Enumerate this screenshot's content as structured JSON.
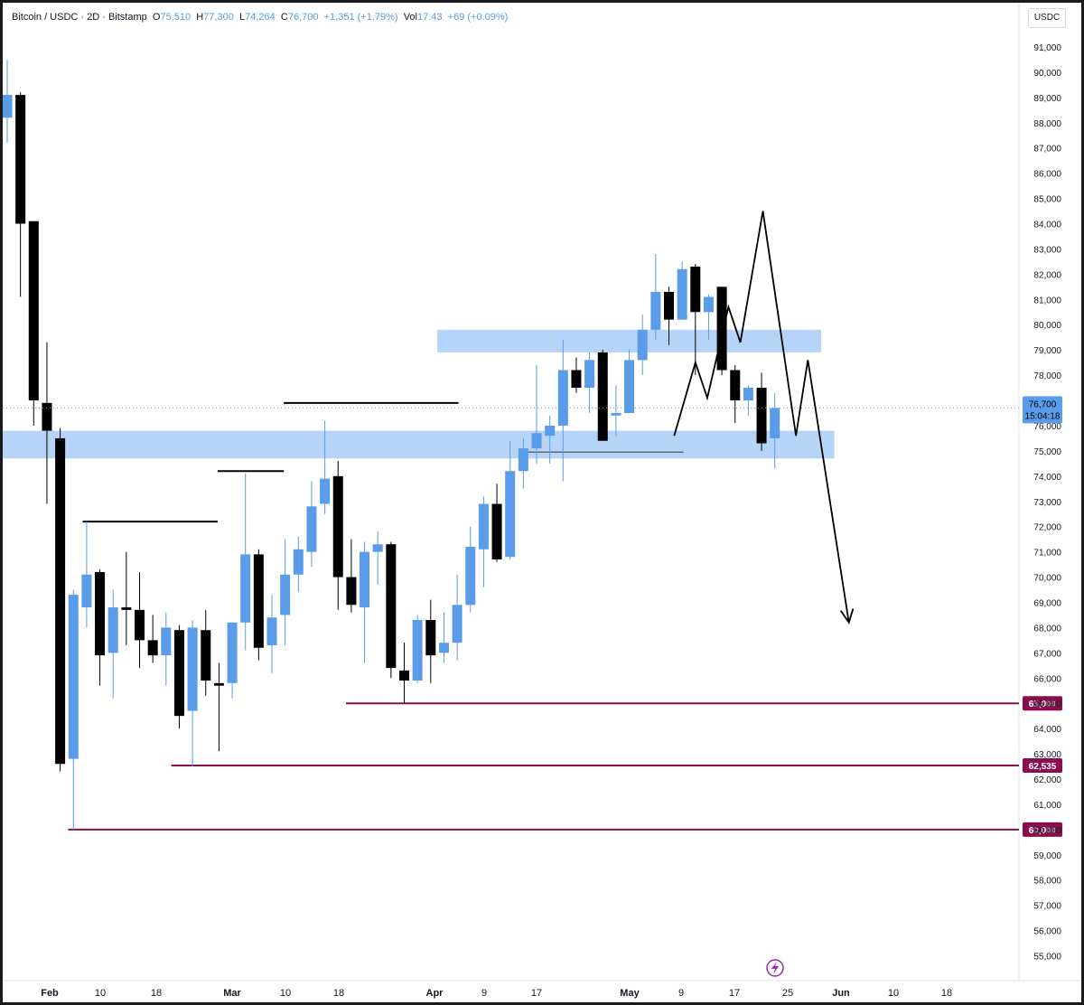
{
  "legend": {
    "title": "Bitcoin / USDC · 2D · Bitstamp",
    "o_label": "O",
    "o": "75,510",
    "h_label": "H",
    "h": "77,300",
    "l_label": "L",
    "l": "74,264",
    "c_label": "C",
    "c": "76,700",
    "change": "+1,351 (+1.79%)",
    "vol_label": "Vol",
    "vol": "17.43",
    "vol_change": "+69 (+0.09%)"
  },
  "currency_button": "USDC",
  "colors": {
    "up": "#5a9bea",
    "down": "#000000",
    "zone": "#a9cdf7",
    "support": "#880e4f",
    "projection": "#000000",
    "price_label": "#5a9bea",
    "lightning": "#9c27b0"
  },
  "icons": [
    "lightning-icon"
  ],
  "chart_data": {
    "type": "candlestick",
    "timeframe": "2D",
    "ylim": [
      54500,
      91700
    ],
    "y_ticks": [
      55000,
      56000,
      57000,
      58000,
      59000,
      60000,
      61000,
      62000,
      63000,
      64000,
      65000,
      66000,
      67000,
      68000,
      69000,
      70000,
      71000,
      72000,
      73000,
      74000,
      75000,
      76000,
      77000,
      78000,
      79000,
      80000,
      81000,
      82000,
      83000,
      84000,
      85000,
      86000,
      87000,
      88000,
      89000,
      90000,
      91000
    ],
    "x_ticks": [
      {
        "label": "Feb",
        "bold": true
      },
      {
        "label": "10",
        "bold": false
      },
      {
        "label": "18",
        "bold": false
      },
      {
        "label": "Mar",
        "bold": true
      },
      {
        "label": "10",
        "bold": false
      },
      {
        "label": "18",
        "bold": false
      },
      {
        "label": "Apr",
        "bold": true
      },
      {
        "label": "9",
        "bold": false
      },
      {
        "label": "17",
        "bold": false
      },
      {
        "label": "May",
        "bold": true
      },
      {
        "label": "9",
        "bold": false
      },
      {
        "label": "17",
        "bold": false
      },
      {
        "label": "25",
        "bold": false
      },
      {
        "label": "Jun",
        "bold": true
      },
      {
        "label": "10",
        "bold": false
      },
      {
        "label": "18",
        "bold": false
      }
    ],
    "candles": [
      {
        "o": 88200,
        "h": 90500,
        "l": 87200,
        "c": 89100
      },
      {
        "o": 89100,
        "h": 89200,
        "l": 81100,
        "c": 84000
      },
      {
        "o": 84100,
        "h": 84100,
        "l": 76000,
        "c": 77000
      },
      {
        "o": 76900,
        "h": 79300,
        "l": 72900,
        "c": 75800
      },
      {
        "o": 75500,
        "h": 75900,
        "l": 62300,
        "c": 62600
      },
      {
        "o": 62800,
        "h": 69500,
        "l": 60000,
        "c": 69300
      },
      {
        "o": 68800,
        "h": 72200,
        "l": 68000,
        "c": 70100
      },
      {
        "o": 70200,
        "h": 70300,
        "l": 65700,
        "c": 66900
      },
      {
        "o": 67000,
        "h": 69500,
        "l": 65200,
        "c": 68800
      },
      {
        "o": 68800,
        "h": 71000,
        "l": 67300,
        "c": 68700
      },
      {
        "o": 68700,
        "h": 70200,
        "l": 66400,
        "c": 67500
      },
      {
        "o": 67500,
        "h": 68500,
        "l": 66600,
        "c": 66900
      },
      {
        "o": 66900,
        "h": 68600,
        "l": 65700,
        "c": 68000
      },
      {
        "o": 67900,
        "h": 68100,
        "l": 64000,
        "c": 64500
      },
      {
        "o": 64700,
        "h": 68300,
        "l": 62500,
        "c": 68000
      },
      {
        "o": 67900,
        "h": 68700,
        "l": 65300,
        "c": 65900
      },
      {
        "o": 65800,
        "h": 66600,
        "l": 63100,
        "c": 65700
      },
      {
        "o": 65800,
        "h": 68200,
        "l": 65200,
        "c": 68200
      },
      {
        "o": 68200,
        "h": 74100,
        "l": 67100,
        "c": 70900
      },
      {
        "o": 70900,
        "h": 71100,
        "l": 66700,
        "c": 67200
      },
      {
        "o": 67300,
        "h": 69300,
        "l": 66200,
        "c": 68400
      },
      {
        "o": 68500,
        "h": 71500,
        "l": 67300,
        "c": 70100
      },
      {
        "o": 70100,
        "h": 71600,
        "l": 69400,
        "c": 71100
      },
      {
        "o": 71000,
        "h": 73800,
        "l": 70400,
        "c": 72800
      },
      {
        "o": 72900,
        "h": 76200,
        "l": 72500,
        "c": 73900
      },
      {
        "o": 74000,
        "h": 74600,
        "l": 68700,
        "c": 70000
      },
      {
        "o": 70000,
        "h": 71500,
        "l": 68600,
        "c": 68900
      },
      {
        "o": 68800,
        "h": 71400,
        "l": 66600,
        "c": 71000
      },
      {
        "o": 71000,
        "h": 71800,
        "l": 69700,
        "c": 71300
      },
      {
        "o": 71300,
        "h": 71400,
        "l": 66000,
        "c": 66400
      },
      {
        "o": 66300,
        "h": 67400,
        "l": 65000,
        "c": 65900
      },
      {
        "o": 65900,
        "h": 68500,
        "l": 65800,
        "c": 68300
      },
      {
        "o": 68300,
        "h": 69100,
        "l": 65800,
        "c": 66900
      },
      {
        "o": 67000,
        "h": 68600,
        "l": 66600,
        "c": 67400
      },
      {
        "o": 67400,
        "h": 70100,
        "l": 66700,
        "c": 68900
      },
      {
        "o": 68900,
        "h": 72000,
        "l": 68600,
        "c": 71200
      },
      {
        "o": 71100,
        "h": 73200,
        "l": 69600,
        "c": 72900
      },
      {
        "o": 72900,
        "h": 73700,
        "l": 70600,
        "c": 70700
      },
      {
        "o": 70800,
        "h": 75400,
        "l": 70700,
        "c": 74200
      },
      {
        "o": 74200,
        "h": 75500,
        "l": 73500,
        "c": 75100
      },
      {
        "o": 75100,
        "h": 78400,
        "l": 74500,
        "c": 75700
      },
      {
        "o": 75600,
        "h": 76400,
        "l": 74500,
        "c": 76000
      },
      {
        "o": 76000,
        "h": 79400,
        "l": 73800,
        "c": 78200
      },
      {
        "o": 78200,
        "h": 78700,
        "l": 77300,
        "c": 77500
      },
      {
        "o": 77500,
        "h": 78900,
        "l": 76500,
        "c": 78600
      },
      {
        "o": 78900,
        "h": 79000,
        "l": 75700,
        "c": 75400
      },
      {
        "o": 76400,
        "h": 77600,
        "l": 75600,
        "c": 76500
      },
      {
        "o": 76500,
        "h": 79000,
        "l": 76500,
        "c": 78600
      },
      {
        "o": 78600,
        "h": 80400,
        "l": 78000,
        "c": 79800
      },
      {
        "o": 79800,
        "h": 82800,
        "l": 79400,
        "c": 81300
      },
      {
        "o": 81300,
        "h": 81500,
        "l": 79200,
        "c": 80200
      },
      {
        "o": 80200,
        "h": 82500,
        "l": 80200,
        "c": 82200
      },
      {
        "o": 82300,
        "h": 82400,
        "l": 78000,
        "c": 80500
      },
      {
        "o": 80500,
        "h": 81200,
        "l": 79400,
        "c": 81100
      },
      {
        "o": 81500,
        "h": 81500,
        "l": 78000,
        "c": 78200
      },
      {
        "o": 78200,
        "h": 78400,
        "l": 76100,
        "c": 77000
      },
      {
        "o": 77000,
        "h": 77600,
        "l": 76400,
        "c": 77500
      },
      {
        "o": 77500,
        "h": 78100,
        "l": 75000,
        "c": 75300
      },
      {
        "o": 75500,
        "h": 77300,
        "l": 74300,
        "c": 76700
      }
    ],
    "zones": [
      {
        "from_bar": -1.2,
        "to_bar": 62.5,
        "low": 74700,
        "high": 75800
      },
      {
        "from_bar": 32.5,
        "to_bar": 61.5,
        "low": 78900,
        "high": 79800
      }
    ],
    "liquidity_lines": [
      {
        "from_bar": 5.7,
        "to_bar": 15.9,
        "price": 72200
      },
      {
        "from_bar": 15.9,
        "to_bar": 20.9,
        "price": 74200
      },
      {
        "from_bar": 20.9,
        "to_bar": 34.1,
        "price": 76900
      },
      {
        "from_bar": 39.2,
        "to_bar": 51.1,
        "price": 74950
      }
    ],
    "support_lines": [
      {
        "from_bar": 25.6,
        "price": 65000,
        "label": "65,000"
      },
      {
        "from_bar": 12.4,
        "price": 62535,
        "label": "62,535"
      },
      {
        "from_bar": 4.6,
        "price": 60000,
        "label": "60,000"
      }
    ],
    "projection": [
      {
        "bar": 50.4,
        "price": 75600
      },
      {
        "bar": 52.0,
        "price": 78500
      },
      {
        "bar": 52.9,
        "price": 77100
      },
      {
        "bar": 54.5,
        "price": 80700
      },
      {
        "bar": 55.4,
        "price": 79300
      },
      {
        "bar": 57.1,
        "price": 84500
      },
      {
        "bar": 59.6,
        "price": 75600
      },
      {
        "bar": 60.5,
        "price": 78600
      },
      {
        "bar": 63.6,
        "price": 68200
      }
    ],
    "current_price": {
      "price": 76700,
      "label": "76,700",
      "countdown": "15:04:18"
    }
  }
}
